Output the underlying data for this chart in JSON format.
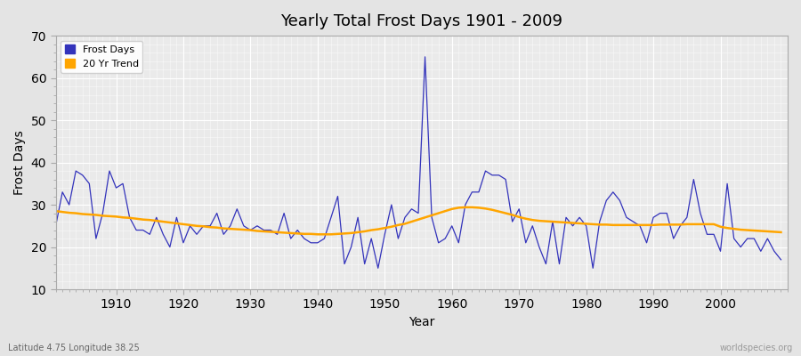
{
  "title": "Yearly Total Frost Days 1901 - 2009",
  "xlabel": "Year",
  "ylabel": "Frost Days",
  "subtitle": "Latitude 4.75 Longitude 38.25",
  "watermark": "worldspecies.org",
  "ylim": [
    10,
    70
  ],
  "yticks": [
    10,
    20,
    30,
    40,
    50,
    60,
    70
  ],
  "line_color": "#3333bb",
  "trend_color": "#FFA500",
  "fig_bg": "#e8e8e8",
  "plot_bg": "#e0e0ea",
  "years": [
    1901,
    1902,
    1903,
    1904,
    1905,
    1906,
    1907,
    1908,
    1909,
    1910,
    1911,
    1912,
    1913,
    1914,
    1915,
    1916,
    1917,
    1918,
    1919,
    1920,
    1921,
    1922,
    1923,
    1924,
    1925,
    1926,
    1927,
    1928,
    1929,
    1930,
    1931,
    1932,
    1933,
    1934,
    1935,
    1936,
    1937,
    1938,
    1939,
    1940,
    1941,
    1942,
    1943,
    1944,
    1945,
    1946,
    1947,
    1948,
    1949,
    1950,
    1951,
    1952,
    1953,
    1954,
    1955,
    1956,
    1957,
    1958,
    1959,
    1960,
    1961,
    1962,
    1963,
    1964,
    1965,
    1966,
    1967,
    1968,
    1969,
    1970,
    1971,
    1972,
    1973,
    1974,
    1975,
    1976,
    1977,
    1978,
    1979,
    1980,
    1981,
    1982,
    1983,
    1984,
    1985,
    1986,
    1987,
    1988,
    1989,
    1990,
    1991,
    1992,
    1993,
    1994,
    1995,
    1996,
    1997,
    1998,
    1999,
    2000,
    2001,
    2002,
    2003,
    2004,
    2005,
    2006,
    2007,
    2008,
    2009
  ],
  "frost_days": [
    25,
    33,
    30,
    38,
    37,
    35,
    22,
    28,
    38,
    34,
    35,
    27,
    24,
    24,
    23,
    27,
    23,
    20,
    27,
    21,
    25,
    23,
    25,
    25,
    28,
    23,
    25,
    29,
    25,
    24,
    25,
    24,
    24,
    23,
    28,
    22,
    24,
    22,
    21,
    21,
    22,
    27,
    32,
    16,
    20,
    27,
    16,
    22,
    15,
    23,
    30,
    22,
    27,
    29,
    28,
    65,
    27,
    21,
    22,
    25,
    21,
    30,
    33,
    33,
    38,
    37,
    37,
    36,
    26,
    29,
    21,
    25,
    20,
    16,
    26,
    16,
    27,
    25,
    27,
    25,
    15,
    26,
    31,
    33,
    31,
    27,
    26,
    25,
    21,
    27,
    28,
    28,
    22,
    25,
    27,
    36,
    28,
    23,
    23,
    19,
    35,
    22,
    20,
    22,
    22,
    19,
    22,
    19,
    17
  ],
  "trend": [
    28.5,
    28.3,
    28.1,
    28.0,
    27.8,
    27.7,
    27.6,
    27.4,
    27.3,
    27.2,
    27.0,
    26.9,
    26.7,
    26.5,
    26.4,
    26.2,
    26.0,
    25.8,
    25.6,
    25.4,
    25.2,
    25.0,
    24.9,
    24.7,
    24.6,
    24.4,
    24.3,
    24.2,
    24.1,
    24.0,
    23.8,
    23.7,
    23.6,
    23.5,
    23.4,
    23.3,
    23.2,
    23.1,
    23.1,
    23.0,
    23.0,
    23.0,
    23.1,
    23.2,
    23.3,
    23.5,
    23.7,
    24.0,
    24.2,
    24.5,
    24.8,
    25.2,
    25.5,
    26.0,
    26.5,
    27.0,
    27.5,
    28.0,
    28.5,
    29.0,
    29.3,
    29.4,
    29.4,
    29.3,
    29.1,
    28.8,
    28.4,
    28.0,
    27.6,
    27.1,
    26.7,
    26.4,
    26.2,
    26.1,
    26.0,
    25.9,
    25.8,
    25.7,
    25.6,
    25.5,
    25.4,
    25.3,
    25.3,
    25.2,
    25.2,
    25.2,
    25.2,
    25.2,
    25.2,
    25.2,
    25.3,
    25.3,
    25.3,
    25.3,
    25.4,
    25.4,
    25.4,
    25.4,
    25.4,
    24.8,
    24.5,
    24.3,
    24.1,
    24.0,
    23.9,
    23.8,
    23.7,
    23.6,
    23.5
  ]
}
